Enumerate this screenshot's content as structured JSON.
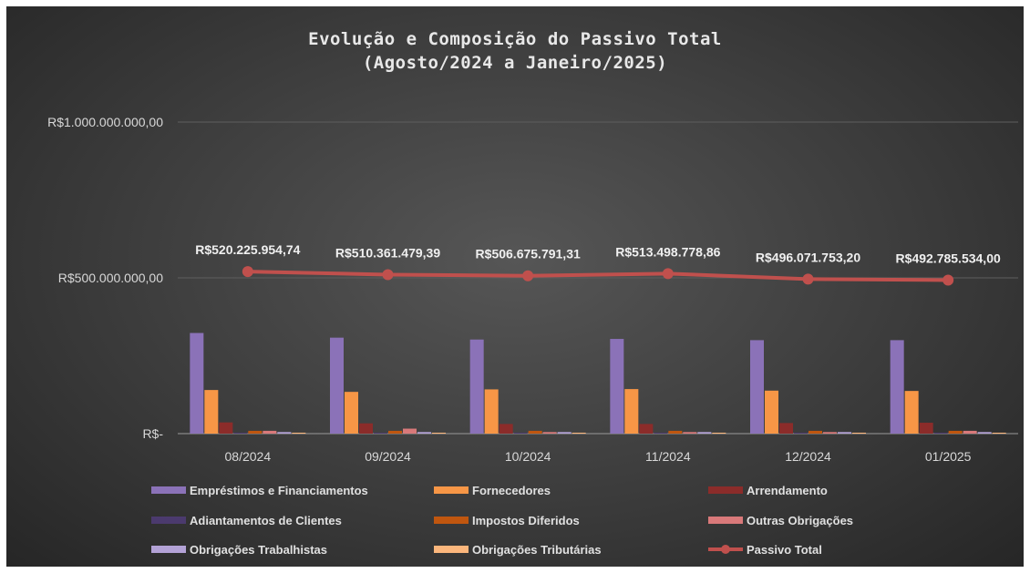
{
  "chart_data": {
    "type": "bar",
    "title": "Evolução e Composição do Passivo Total",
    "subtitle": "(Agosto/2024 a Janeiro/2025)",
    "categories": [
      "08/2024",
      "09/2024",
      "10/2024",
      "11/2024",
      "12/2024",
      "01/2025"
    ],
    "y_ticks": [
      {
        "value": 0,
        "label": "R$-"
      },
      {
        "value": 500000000,
        "label": "R$500.000.000,00"
      },
      {
        "value": 1000000000,
        "label": "R$1.000.000.000,00"
      }
    ],
    "ylim": [
      0,
      1000000000
    ],
    "grid": true,
    "legend_position": "bottom",
    "series": [
      {
        "name": "Empréstimos e Financiamentos",
        "color": "#8b72b8",
        "values": [
          323000000,
          308000000,
          302000000,
          304000000,
          300000000,
          300000000
        ]
      },
      {
        "name": "Fornecedores",
        "color": "#f79646",
        "values": [
          140000000,
          134000000,
          142000000,
          143000000,
          138000000,
          137000000
        ]
      },
      {
        "name": "Arrendamento",
        "color": "#8b2c2a",
        "values": [
          36000000,
          33000000,
          31000000,
          31000000,
          34000000,
          35000000
        ]
      },
      {
        "name": "Adiantamentos de Clientes",
        "color": "#4b3a6e",
        "values": [
          3000000,
          3000000,
          3000000,
          3000000,
          3000000,
          3000000
        ]
      },
      {
        "name": "Impostos Diferidos",
        "color": "#c0560f",
        "values": [
          9000000,
          9000000,
          9000000,
          9000000,
          9000000,
          9000000
        ]
      },
      {
        "name": "Outras Obrigações",
        "color": "#d9797a",
        "values": [
          9000000,
          16000000,
          5000000,
          5000000,
          5000000,
          9000000
        ]
      },
      {
        "name": "Obrigações Trabalhistas",
        "color": "#b3a2d6",
        "values": [
          5000000,
          5000000,
          5000000,
          5000000,
          5000000,
          5000000
        ]
      },
      {
        "name": "Obrigações Tributárias",
        "color": "#fbb67c",
        "values": [
          3000000,
          3000000,
          3000000,
          3000000,
          3000000,
          3000000
        ]
      }
    ],
    "line_series": {
      "name": "Passivo Total",
      "color": "#c0504d",
      "values": [
        520225954.74,
        510361479.39,
        506675791.31,
        513498778.86,
        496071753.2,
        492785534.0
      ],
      "labels": [
        "R$520.225.954,74",
        "R$510.361.479,39",
        "R$506.675.791,31",
        "R$513.498.778,86",
        "R$496.071.753,20",
        "R$492.785.534,00"
      ]
    }
  }
}
